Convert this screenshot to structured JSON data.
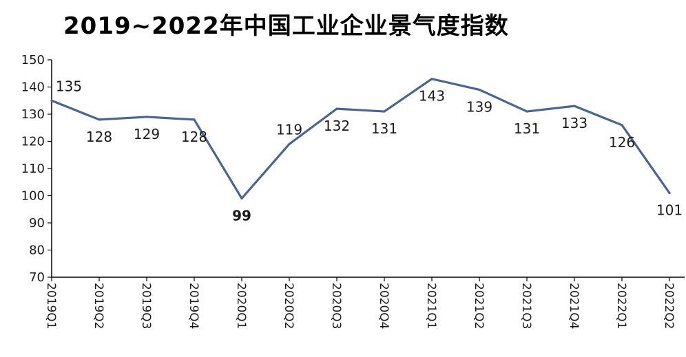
{
  "chart_data": {
    "type": "line",
    "title": "2019~2022年中国工业企业景气度指数",
    "xlabel": "",
    "ylabel": "",
    "categories": [
      "2019Q1",
      "2019Q2",
      "2019Q3",
      "2019Q4",
      "2020Q1",
      "2020Q2",
      "2020Q3",
      "2020Q4",
      "2021Q1",
      "2021Q2",
      "2021Q3",
      "2021Q4",
      "2022Q1",
      "2022Q2"
    ],
    "series": [
      {
        "values": [
          135,
          128,
          129,
          128,
          99,
          119,
          132,
          131,
          143,
          139,
          131,
          133,
          126,
          101
        ]
      }
    ],
    "ylim": [
      70,
      150
    ],
    "yticks": [
      70,
      80,
      90,
      100,
      110,
      120,
      130,
      140,
      150
    ],
    "grid": false,
    "legend": "none",
    "line_color": "#4a6591",
    "bold_labels": [
      "99"
    ]
  }
}
